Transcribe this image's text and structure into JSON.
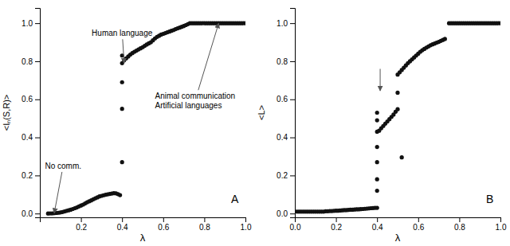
{
  "chart_data": [
    {
      "type": "scatter",
      "title": "A",
      "xlabel": "λ",
      "ylabel": "<Iₙ(S,R)>",
      "xlim": [
        0,
        1.0
      ],
      "ylim": [
        -0.02,
        1.08
      ],
      "xticks": [
        0.2,
        0.4,
        0.6,
        0.8,
        {
          "value": 1,
          "label": "1.0"
        }
      ],
      "yticks": [
        {
          "value": 0.0,
          "label": "0.0"
        },
        0.2,
        0.4,
        0.6,
        0.8,
        {
          "value": 1.0,
          "label": "1.0"
        }
      ],
      "series": [
        {
          "color": "#111111",
          "x": [
            0.04,
            0.05,
            0.06,
            0.07,
            0.08,
            0.09,
            0.1,
            0.11,
            0.12,
            0.13,
            0.14,
            0.15,
            0.16,
            0.17,
            0.18,
            0.19,
            0.2,
            0.21,
            0.22,
            0.23,
            0.24,
            0.25,
            0.26,
            0.27,
            0.28,
            0.29,
            0.3,
            0.31,
            0.32,
            0.33,
            0.34,
            0.35,
            0.36,
            0.37,
            0.38,
            0.39
          ],
          "values": [
            0.0,
            0.001,
            0.001,
            0.002,
            0.003,
            0.004,
            0.006,
            0.008,
            0.011,
            0.014,
            0.017,
            0.02,
            0.024,
            0.028,
            0.032,
            0.037,
            0.042,
            0.047,
            0.053,
            0.059,
            0.064,
            0.069,
            0.075,
            0.08,
            0.085,
            0.09,
            0.093,
            0.096,
            0.099,
            0.101,
            0.103,
            0.105,
            0.107,
            0.106,
            0.102,
            0.097
          ]
        },
        {
          "color": "#111111",
          "x": [
            0.4,
            0.4,
            0.4,
            0.4
          ],
          "values": [
            0.27,
            0.55,
            0.69,
            0.83
          ]
        },
        {
          "color": "#111111",
          "x": [
            0.4,
            0.41,
            0.42,
            0.43,
            0.44,
            0.45,
            0.46,
            0.47,
            0.48,
            0.49,
            0.5,
            0.51,
            0.52,
            0.53,
            0.54,
            0.55,
            0.56,
            0.57,
            0.58,
            0.59,
            0.6,
            0.61,
            0.62,
            0.63,
            0.64,
            0.65,
            0.66,
            0.67,
            0.68,
            0.69,
            0.7,
            0.71,
            0.72
          ],
          "values": [
            0.79,
            0.805,
            0.815,
            0.825,
            0.835,
            0.843,
            0.85,
            0.856,
            0.862,
            0.868,
            0.874,
            0.881,
            0.888,
            0.894,
            0.9,
            0.91,
            0.92,
            0.928,
            0.934,
            0.94,
            0.944,
            0.948,
            0.952,
            0.956,
            0.96,
            0.964,
            0.969,
            0.973,
            0.977,
            0.981,
            0.985,
            0.99,
            0.995
          ]
        },
        {
          "color": "#111111",
          "x": [
            0.73,
            0.74,
            0.75,
            0.76,
            0.77,
            0.78,
            0.79,
            0.8,
            0.81,
            0.82,
            0.83,
            0.84,
            0.85,
            0.86,
            0.87,
            0.88,
            0.89,
            0.9,
            0.91,
            0.92,
            0.93,
            0.94,
            0.95,
            0.96,
            0.97,
            0.98,
            0.99,
            1.0
          ],
          "values": [
            1.0,
            1.0,
            1.0,
            1.0,
            1.0,
            1.0,
            1.0,
            1.0,
            1.0,
            1.0,
            1.0,
            1.0,
            1.0,
            1.0,
            1.0,
            1.0,
            1.0,
            1.0,
            1.0,
            1.0,
            1.0,
            1.0,
            1.0,
            1.0,
            1.0,
            1.0,
            1.0,
            1.0
          ]
        }
      ],
      "annotations": [
        {
          "text": "Human language",
          "xy": [
            0.41,
            0.79
          ],
          "xytext": [
            0.4,
            0.97
          ]
        },
        {
          "text": "Animal communication\nArtificial languages",
          "xy": [
            0.87,
            1.0
          ],
          "xytext": [
            0.56,
            0.64
          ]
        },
        {
          "text": "No comm.",
          "xy": [
            0.07,
            0.002
          ],
          "xytext": [
            0.025,
            0.25
          ]
        }
      ]
    },
    {
      "type": "scatter",
      "title": "B",
      "xlabel": "λ",
      "ylabel": "<L>",
      "xlim": [
        0,
        1.0
      ],
      "ylim": [
        -0.02,
        1.08
      ],
      "xticks": [
        {
          "value": 0,
          "label": "0.0"
        },
        0.2,
        0.4,
        0.6,
        0.8,
        {
          "value": 1,
          "label": "1.0"
        }
      ],
      "yticks": [
        {
          "value": 0.0,
          "label": "0.0"
        },
        0.2,
        0.4,
        0.6,
        0.8,
        {
          "value": 1.0,
          "label": "1.0"
        }
      ],
      "series": [
        {
          "color": "#111111",
          "x": [
            0.0,
            0.01,
            0.02,
            0.03,
            0.04,
            0.05,
            0.06,
            0.07,
            0.08,
            0.09,
            0.1,
            0.11,
            0.12,
            0.13,
            0.14,
            0.15,
            0.16,
            0.17,
            0.18,
            0.19,
            0.2,
            0.21,
            0.22,
            0.23,
            0.24,
            0.25,
            0.26,
            0.27,
            0.28,
            0.29,
            0.3,
            0.31,
            0.32,
            0.33,
            0.34,
            0.35,
            0.36,
            0.37,
            0.38,
            0.39,
            0.4
          ],
          "values": [
            0.01,
            0.01,
            0.01,
            0.01,
            0.01,
            0.01,
            0.01,
            0.01,
            0.01,
            0.01,
            0.01,
            0.01,
            0.01,
            0.01,
            0.01,
            0.012,
            0.012,
            0.013,
            0.013,
            0.014,
            0.015,
            0.015,
            0.016,
            0.017,
            0.018,
            0.018,
            0.019,
            0.02,
            0.02,
            0.021,
            0.022,
            0.022,
            0.023,
            0.024,
            0.025,
            0.026,
            0.027,
            0.028,
            0.029,
            0.03,
            0.03
          ]
        },
        {
          "color": "#111111",
          "x": [
            0.4,
            0.4,
            0.4,
            0.4,
            0.4,
            0.4,
            0.4
          ],
          "values": [
            0.12,
            0.18,
            0.27,
            0.35,
            0.43,
            0.49,
            0.53
          ]
        },
        {
          "color": "#111111",
          "x": [
            0.41,
            0.42,
            0.43,
            0.44,
            0.45,
            0.46,
            0.47,
            0.48,
            0.49,
            0.5
          ],
          "values": [
            0.435,
            0.448,
            0.46,
            0.472,
            0.484,
            0.496,
            0.508,
            0.52,
            0.535,
            0.548
          ]
        },
        {
          "color": "#111111",
          "x": [
            0.5,
            0.52
          ],
          "values": [
            0.635,
            0.295
          ]
        },
        {
          "color": "#111111",
          "x": [
            0.5,
            0.51,
            0.52,
            0.53,
            0.54,
            0.55,
            0.56,
            0.57,
            0.58,
            0.59,
            0.6,
            0.61,
            0.62,
            0.63,
            0.64,
            0.65,
            0.66,
            0.67,
            0.68,
            0.69,
            0.7,
            0.71,
            0.72,
            0.73
          ],
          "values": [
            0.73,
            0.742,
            0.754,
            0.766,
            0.778,
            0.79,
            0.8,
            0.81,
            0.82,
            0.83,
            0.84,
            0.85,
            0.858,
            0.865,
            0.872,
            0.878,
            0.884,
            0.889,
            0.893,
            0.898,
            0.902,
            0.907,
            0.912,
            0.917
          ]
        },
        {
          "color": "#111111",
          "x": [
            0.75,
            0.76,
            0.77,
            0.78,
            0.79,
            0.8,
            0.81,
            0.82,
            0.83,
            0.84,
            0.85,
            0.86,
            0.87,
            0.88,
            0.89,
            0.9,
            0.91,
            0.92,
            0.93,
            0.94,
            0.95,
            0.96,
            0.97,
            0.98,
            0.99,
            1.0
          ],
          "values": [
            1.0,
            1.0,
            1.0,
            1.0,
            1.0,
            1.0,
            1.0,
            1.0,
            1.0,
            1.0,
            1.0,
            1.0,
            1.0,
            1.0,
            1.0,
            1.0,
            1.0,
            1.0,
            1.0,
            1.0,
            1.0,
            1.0,
            1.0,
            1.0,
            1.0,
            1.0
          ]
        }
      ],
      "annotations": [
        {
          "xy": [
            0.415,
            0.645
          ],
          "xytext": [
            0.415,
            0.76
          ]
        }
      ]
    }
  ]
}
